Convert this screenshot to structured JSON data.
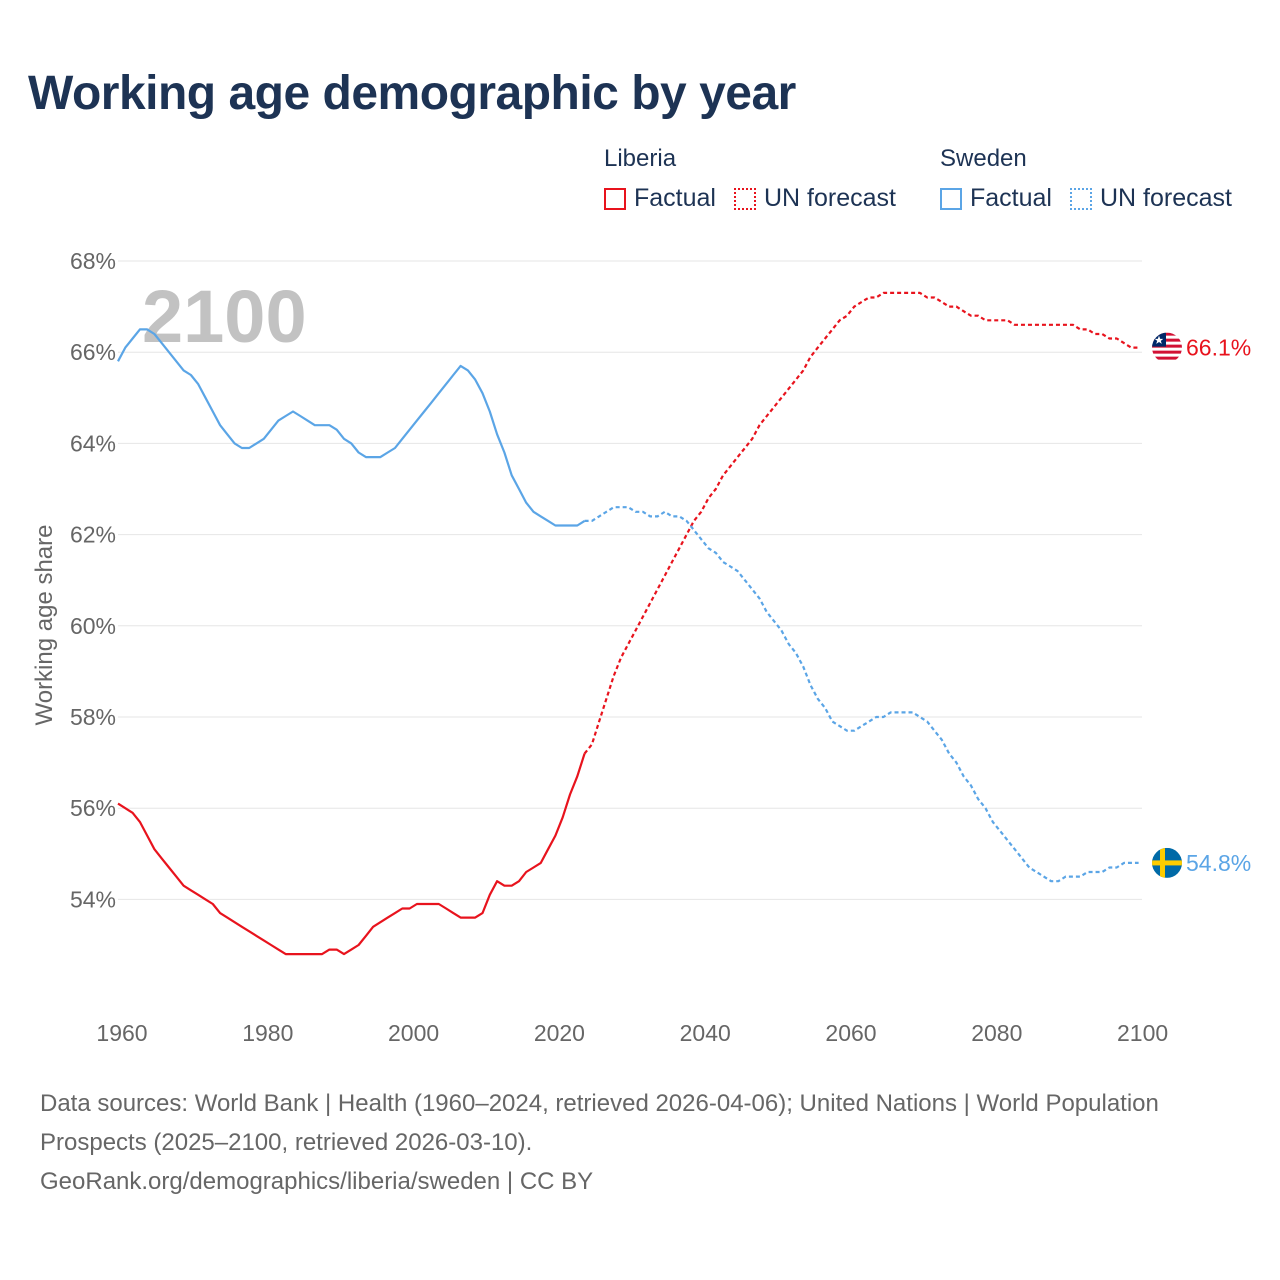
{
  "title": "Working age demographic by year",
  "legend": {
    "groups": [
      {
        "name": "Liberia",
        "color": "#e8131d",
        "items": [
          {
            "label": "Factual",
            "style": "solid"
          },
          {
            "label": "UN forecast",
            "style": "dotted"
          }
        ]
      },
      {
        "name": "Sweden",
        "color": "#5ba5e6",
        "items": [
          {
            "label": "Factual",
            "style": "solid"
          },
          {
            "label": "UN forecast",
            "style": "dotted"
          }
        ]
      }
    ]
  },
  "year_watermark": "2100",
  "source": {
    "line1": "Data sources: World Bank | Health (1960–2024, retrieved 2026-04-06); United Nations | World Population Prospects (2025–2100, retrieved 2026-03-10).",
    "line2": "GeoRank.org/demographics/liberia/sweden | CC BY"
  },
  "chart_data": {
    "type": "line",
    "title": "Working age demographic by year",
    "xlabel": "",
    "ylabel": "Working age share",
    "xlim": [
      1960,
      2100
    ],
    "ylim": [
      52,
      68
    ],
    "x_ticks": [
      1960,
      1980,
      2000,
      2020,
      2040,
      2060,
      2080,
      2100
    ],
    "y_ticks": [
      54,
      56,
      58,
      60,
      62,
      64,
      66,
      68
    ],
    "y_tick_suffix": "%",
    "grid": true,
    "series": [
      {
        "name": "Liberia",
        "color": "#e8131d",
        "end_label": "66.1%",
        "factual": [
          [
            1960,
            56.1
          ],
          [
            1961,
            56.0
          ],
          [
            1962,
            55.9
          ],
          [
            1963,
            55.7
          ],
          [
            1964,
            55.4
          ],
          [
            1965,
            55.1
          ],
          [
            1966,
            54.9
          ],
          [
            1967,
            54.7
          ],
          [
            1968,
            54.5
          ],
          [
            1969,
            54.3
          ],
          [
            1970,
            54.2
          ],
          [
            1971,
            54.1
          ],
          [
            1972,
            54.0
          ],
          [
            1973,
            53.9
          ],
          [
            1974,
            53.7
          ],
          [
            1975,
            53.6
          ],
          [
            1976,
            53.5
          ],
          [
            1977,
            53.4
          ],
          [
            1978,
            53.3
          ],
          [
            1979,
            53.2
          ],
          [
            1980,
            53.1
          ],
          [
            1981,
            53.0
          ],
          [
            1982,
            52.9
          ],
          [
            1983,
            52.8
          ],
          [
            1984,
            52.8
          ],
          [
            1985,
            52.8
          ],
          [
            1986,
            52.8
          ],
          [
            1987,
            52.8
          ],
          [
            1988,
            52.8
          ],
          [
            1989,
            52.9
          ],
          [
            1990,
            52.9
          ],
          [
            1991,
            52.8
          ],
          [
            1992,
            52.9
          ],
          [
            1993,
            53.0
          ],
          [
            1994,
            53.2
          ],
          [
            1995,
            53.4
          ],
          [
            1996,
            53.5
          ],
          [
            1997,
            53.6
          ],
          [
            1998,
            53.7
          ],
          [
            1999,
            53.8
          ],
          [
            2000,
            53.8
          ],
          [
            2001,
            53.9
          ],
          [
            2002,
            53.9
          ],
          [
            2003,
            53.9
          ],
          [
            2004,
            53.9
          ],
          [
            2005,
            53.8
          ],
          [
            2006,
            53.7
          ],
          [
            2007,
            53.6
          ],
          [
            2008,
            53.6
          ],
          [
            2009,
            53.6
          ],
          [
            2010,
            53.7
          ],
          [
            2011,
            54.1
          ],
          [
            2012,
            54.4
          ],
          [
            2013,
            54.3
          ],
          [
            2014,
            54.3
          ],
          [
            2015,
            54.4
          ],
          [
            2016,
            54.6
          ],
          [
            2017,
            54.7
          ],
          [
            2018,
            54.8
          ],
          [
            2019,
            55.1
          ],
          [
            2020,
            55.4
          ],
          [
            2021,
            55.8
          ],
          [
            2022,
            56.3
          ],
          [
            2023,
            56.7
          ],
          [
            2024,
            57.2
          ]
        ],
        "forecast": [
          [
            2024,
            57.2
          ],
          [
            2025,
            57.4
          ],
          [
            2026,
            57.9
          ],
          [
            2027,
            58.4
          ],
          [
            2028,
            58.9
          ],
          [
            2029,
            59.3
          ],
          [
            2030,
            59.6
          ],
          [
            2031,
            59.9
          ],
          [
            2032,
            60.2
          ],
          [
            2033,
            60.5
          ],
          [
            2034,
            60.8
          ],
          [
            2035,
            61.1
          ],
          [
            2036,
            61.4
          ],
          [
            2037,
            61.7
          ],
          [
            2038,
            62.0
          ],
          [
            2039,
            62.3
          ],
          [
            2040,
            62.5
          ],
          [
            2041,
            62.8
          ],
          [
            2042,
            63.0
          ],
          [
            2043,
            63.3
          ],
          [
            2044,
            63.5
          ],
          [
            2045,
            63.7
          ],
          [
            2046,
            63.9
          ],
          [
            2047,
            64.1
          ],
          [
            2048,
            64.4
          ],
          [
            2049,
            64.6
          ],
          [
            2050,
            64.8
          ],
          [
            2051,
            65.0
          ],
          [
            2052,
            65.2
          ],
          [
            2053,
            65.4
          ],
          [
            2054,
            65.6
          ],
          [
            2055,
            65.9
          ],
          [
            2056,
            66.1
          ],
          [
            2057,
            66.3
          ],
          [
            2058,
            66.5
          ],
          [
            2059,
            66.7
          ],
          [
            2060,
            66.8
          ],
          [
            2061,
            67.0
          ],
          [
            2062,
            67.1
          ],
          [
            2063,
            67.2
          ],
          [
            2064,
            67.2
          ],
          [
            2065,
            67.3
          ],
          [
            2066,
            67.3
          ],
          [
            2067,
            67.3
          ],
          [
            2068,
            67.3
          ],
          [
            2069,
            67.3
          ],
          [
            2070,
            67.3
          ],
          [
            2071,
            67.2
          ],
          [
            2072,
            67.2
          ],
          [
            2073,
            67.1
          ],
          [
            2074,
            67.0
          ],
          [
            2075,
            67.0
          ],
          [
            2076,
            66.9
          ],
          [
            2077,
            66.8
          ],
          [
            2078,
            66.8
          ],
          [
            2079,
            66.7
          ],
          [
            2080,
            66.7
          ],
          [
            2081,
            66.7
          ],
          [
            2082,
            66.7
          ],
          [
            2083,
            66.6
          ],
          [
            2084,
            66.6
          ],
          [
            2085,
            66.6
          ],
          [
            2086,
            66.6
          ],
          [
            2087,
            66.6
          ],
          [
            2088,
            66.6
          ],
          [
            2089,
            66.6
          ],
          [
            2090,
            66.6
          ],
          [
            2091,
            66.6
          ],
          [
            2092,
            66.5
          ],
          [
            2093,
            66.5
          ],
          [
            2094,
            66.4
          ],
          [
            2095,
            66.4
          ],
          [
            2096,
            66.3
          ],
          [
            2097,
            66.3
          ],
          [
            2098,
            66.2
          ],
          [
            2099,
            66.1
          ],
          [
            2100,
            66.1
          ]
        ]
      },
      {
        "name": "Sweden",
        "color": "#5ba5e6",
        "end_label": "54.8%",
        "factual": [
          [
            1960,
            65.8
          ],
          [
            1961,
            66.1
          ],
          [
            1962,
            66.3
          ],
          [
            1963,
            66.5
          ],
          [
            1964,
            66.5
          ],
          [
            1965,
            66.4
          ],
          [
            1966,
            66.2
          ],
          [
            1967,
            66.0
          ],
          [
            1968,
            65.8
          ],
          [
            1969,
            65.6
          ],
          [
            1970,
            65.5
          ],
          [
            1971,
            65.3
          ],
          [
            1972,
            65.0
          ],
          [
            1973,
            64.7
          ],
          [
            1974,
            64.4
          ],
          [
            1975,
            64.2
          ],
          [
            1976,
            64.0
          ],
          [
            1977,
            63.9
          ],
          [
            1978,
            63.9
          ],
          [
            1979,
            64.0
          ],
          [
            1980,
            64.1
          ],
          [
            1981,
            64.3
          ],
          [
            1982,
            64.5
          ],
          [
            1983,
            64.6
          ],
          [
            1984,
            64.7
          ],
          [
            1985,
            64.6
          ],
          [
            1986,
            64.5
          ],
          [
            1987,
            64.4
          ],
          [
            1988,
            64.4
          ],
          [
            1989,
            64.4
          ],
          [
            1990,
            64.3
          ],
          [
            1991,
            64.1
          ],
          [
            1992,
            64.0
          ],
          [
            1993,
            63.8
          ],
          [
            1994,
            63.7
          ],
          [
            1995,
            63.7
          ],
          [
            1996,
            63.7
          ],
          [
            1997,
            63.8
          ],
          [
            1998,
            63.9
          ],
          [
            1999,
            64.1
          ],
          [
            2000,
            64.3
          ],
          [
            2001,
            64.5
          ],
          [
            2002,
            64.7
          ],
          [
            2003,
            64.9
          ],
          [
            2004,
            65.1
          ],
          [
            2005,
            65.3
          ],
          [
            2006,
            65.5
          ],
          [
            2007,
            65.7
          ],
          [
            2008,
            65.6
          ],
          [
            2009,
            65.4
          ],
          [
            2010,
            65.1
          ],
          [
            2011,
            64.7
          ],
          [
            2012,
            64.2
          ],
          [
            2013,
            63.8
          ],
          [
            2014,
            63.3
          ],
          [
            2015,
            63.0
          ],
          [
            2016,
            62.7
          ],
          [
            2017,
            62.5
          ],
          [
            2018,
            62.4
          ],
          [
            2019,
            62.3
          ],
          [
            2020,
            62.2
          ],
          [
            2021,
            62.2
          ],
          [
            2022,
            62.2
          ],
          [
            2023,
            62.2
          ],
          [
            2024,
            62.3
          ]
        ],
        "forecast": [
          [
            2024,
            62.3
          ],
          [
            2025,
            62.3
          ],
          [
            2026,
            62.4
          ],
          [
            2027,
            62.5
          ],
          [
            2028,
            62.6
          ],
          [
            2029,
            62.6
          ],
          [
            2030,
            62.6
          ],
          [
            2031,
            62.5
          ],
          [
            2032,
            62.5
          ],
          [
            2033,
            62.4
          ],
          [
            2034,
            62.4
          ],
          [
            2035,
            62.5
          ],
          [
            2036,
            62.4
          ],
          [
            2037,
            62.4
          ],
          [
            2038,
            62.3
          ],
          [
            2039,
            62.1
          ],
          [
            2040,
            61.9
          ],
          [
            2041,
            61.7
          ],
          [
            2042,
            61.6
          ],
          [
            2043,
            61.4
          ],
          [
            2044,
            61.3
          ],
          [
            2045,
            61.2
          ],
          [
            2046,
            61.0
          ],
          [
            2047,
            60.8
          ],
          [
            2048,
            60.6
          ],
          [
            2049,
            60.3
          ],
          [
            2050,
            60.1
          ],
          [
            2051,
            59.9
          ],
          [
            2052,
            59.6
          ],
          [
            2053,
            59.4
          ],
          [
            2054,
            59.1
          ],
          [
            2055,
            58.7
          ],
          [
            2056,
            58.4
          ],
          [
            2057,
            58.2
          ],
          [
            2058,
            57.9
          ],
          [
            2059,
            57.8
          ],
          [
            2060,
            57.7
          ],
          [
            2061,
            57.7
          ],
          [
            2062,
            57.8
          ],
          [
            2063,
            57.9
          ],
          [
            2064,
            58.0
          ],
          [
            2065,
            58.0
          ],
          [
            2066,
            58.1
          ],
          [
            2067,
            58.1
          ],
          [
            2068,
            58.1
          ],
          [
            2069,
            58.1
          ],
          [
            2070,
            58.0
          ],
          [
            2071,
            57.9
          ],
          [
            2072,
            57.7
          ],
          [
            2073,
            57.5
          ],
          [
            2074,
            57.2
          ],
          [
            2075,
            57.0
          ],
          [
            2076,
            56.7
          ],
          [
            2077,
            56.5
          ],
          [
            2078,
            56.2
          ],
          [
            2079,
            56.0
          ],
          [
            2080,
            55.7
          ],
          [
            2081,
            55.5
          ],
          [
            2082,
            55.3
          ],
          [
            2083,
            55.1
          ],
          [
            2084,
            54.9
          ],
          [
            2085,
            54.7
          ],
          [
            2086,
            54.6
          ],
          [
            2087,
            54.5
          ],
          [
            2088,
            54.4
          ],
          [
            2089,
            54.4
          ],
          [
            2090,
            54.5
          ],
          [
            2091,
            54.5
          ],
          [
            2092,
            54.5
          ],
          [
            2093,
            54.6
          ],
          [
            2094,
            54.6
          ],
          [
            2095,
            54.6
          ],
          [
            2096,
            54.7
          ],
          [
            2097,
            54.7
          ],
          [
            2098,
            54.8
          ],
          [
            2099,
            54.8
          ],
          [
            2100,
            54.8
          ]
        ]
      }
    ]
  }
}
